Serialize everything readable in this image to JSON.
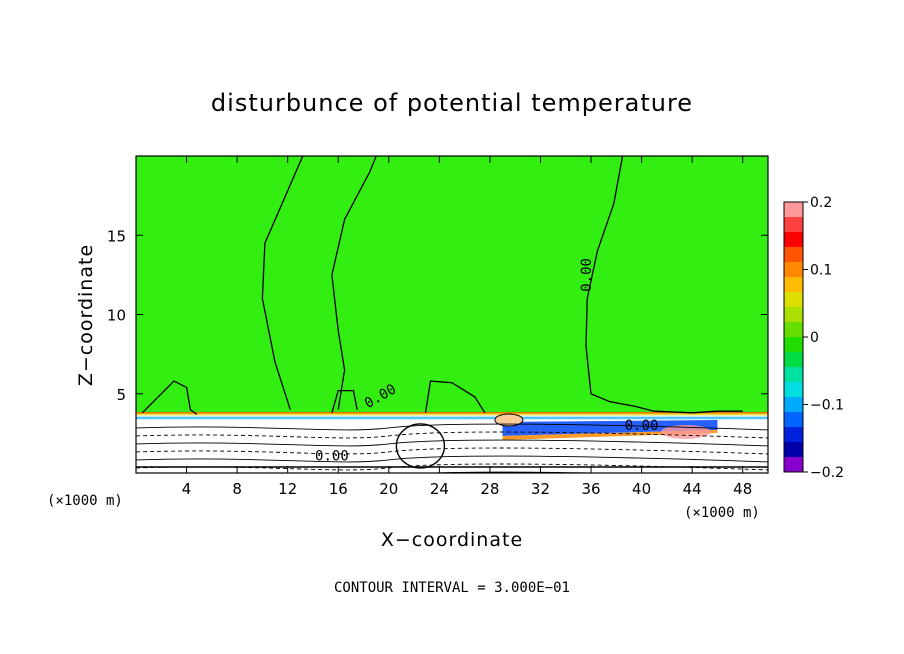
{
  "chart_data": {
    "type": "contour",
    "title": "disturbunce of potential temperature",
    "xlabel": "X−coordinate",
    "ylabel": "Z−coordinate",
    "x_unit_left": "(×1000 m)",
    "x_unit_right": "(×1000 m)",
    "xlim": [
      0,
      50
    ],
    "ylim": [
      0,
      20
    ],
    "x_ticks": [
      4,
      8,
      12,
      16,
      20,
      24,
      28,
      32,
      36,
      40,
      44,
      48
    ],
    "y_ticks": [
      5,
      10,
      15
    ],
    "colorbar": {
      "ticks": [
        0.2,
        0.1,
        0,
        -0.1,
        -0.2
      ],
      "tick_labels": [
        "0.2",
        "0.1",
        "0",
        "−0.1",
        "−0.2"
      ],
      "colors": [
        "#ff9999",
        "#ff4040",
        "#ff0000",
        "#ff5500",
        "#ff8800",
        "#ffbb00",
        "#dddd00",
        "#aadd00",
        "#66dd00",
        "#22dd00",
        "#00dd44",
        "#00e0a0",
        "#00e0e0",
        "#00aaff",
        "#0066ff",
        "#0022dd",
        "#0000aa",
        "#8800cc"
      ]
    },
    "contour_labels": [
      {
        "text": "0.00",
        "x": 36.0,
        "z": 12.5,
        "rotate": -90
      },
      {
        "text": "0.00",
        "x": 19.5,
        "z": 4.6,
        "rotate": -30
      },
      {
        "text": "0.00",
        "x": 40.0,
        "z": 2.7,
        "rotate": 0
      },
      {
        "text": "0.00",
        "x": 15.5,
        "z": 0.8,
        "rotate": 0
      }
    ],
    "zero_contours": [
      {
        "name": "left-plume",
        "points": [
          [
            13.2,
            20
          ],
          [
            10.2,
            14.5
          ],
          [
            10.0,
            11.0
          ],
          [
            11.0,
            7.0
          ],
          [
            11.8,
            5.0
          ],
          [
            12.2,
            4.0
          ]
        ]
      },
      {
        "name": "left-plume-right",
        "points": [
          [
            16.0,
            4.0
          ],
          [
            16.5,
            6.5
          ],
          [
            16.0,
            9.0
          ],
          [
            15.5,
            12.5
          ],
          [
            16.5,
            16.0
          ],
          [
            18.5,
            19.0
          ],
          [
            19.0,
            20
          ]
        ]
      },
      {
        "name": "right-region",
        "points": [
          [
            38.5,
            20
          ],
          [
            37.8,
            17.0
          ],
          [
            36.5,
            14.0
          ],
          [
            35.7,
            11.0
          ],
          [
            35.6,
            8.0
          ],
          [
            36.0,
            5.0
          ],
          [
            37.5,
            4.5
          ],
          [
            39.5,
            4.2
          ],
          [
            41.0,
            3.9
          ],
          [
            44.0,
            3.8
          ],
          [
            46.0,
            3.9
          ],
          [
            48.0,
            3.9
          ]
        ]
      },
      {
        "name": "small-hump-left",
        "points": [
          [
            0.5,
            3.8
          ],
          [
            1.5,
            4.6
          ],
          [
            3.0,
            5.8
          ],
          [
            4.0,
            5.4
          ],
          [
            4.3,
            4.0
          ],
          [
            4.8,
            3.7
          ]
        ]
      },
      {
        "name": "hump-center",
        "points": [
          [
            22.9,
            3.8
          ],
          [
            23.3,
            5.8
          ],
          [
            25.0,
            5.7
          ],
          [
            26.8,
            4.8
          ],
          [
            27.6,
            3.8
          ]
        ]
      },
      {
        "name": "hump-mid",
        "points": [
          [
            15.5,
            3.8
          ],
          [
            16.0,
            5.2
          ],
          [
            17.2,
            5.2
          ],
          [
            17.5,
            4.0
          ]
        ]
      }
    ],
    "anomaly_layer_z": 3.6
  }
}
